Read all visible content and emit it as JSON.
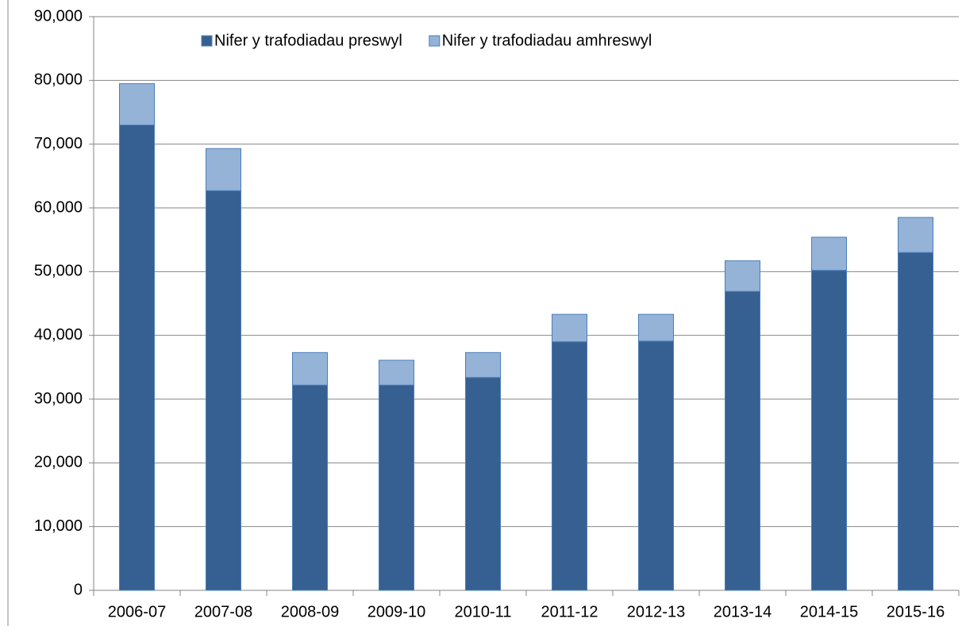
{
  "chart_data": {
    "type": "stacked_bar",
    "categories": [
      "2006-07",
      "2007-08",
      "2008-09",
      "2009-10",
      "2010-11",
      "2011-12",
      "2012-13",
      "2013-14",
      "2014-15",
      "2015-16"
    ],
    "series": [
      {
        "name": "Nifer y trafodiadau preswyl",
        "color": "#376092",
        "values": [
          73000,
          62700,
          32200,
          32200,
          33400,
          39000,
          39100,
          46900,
          50200,
          53000
        ]
      },
      {
        "name": "Nifer y trafodiadau amhreswyl",
        "color": "#95b3d7",
        "values": [
          6500,
          6600,
          5100,
          3900,
          3900,
          4300,
          4200,
          4800,
          5200,
          5500
        ]
      }
    ],
    "ylim": [
      0,
      90000
    ],
    "yticks": [
      0,
      {
        "value": 10000,
        "label": "10,000"
      },
      {
        "value": 20000,
        "label": "20,000"
      },
      {
        "value": 30000,
        "label": "30,000"
      },
      {
        "value": 40000,
        "label": "40,000"
      },
      {
        "value": 50000,
        "label": "50,000"
      },
      {
        "value": 60000,
        "label": "60,000"
      },
      {
        "value": 70000,
        "label": "70,000"
      },
      {
        "value": 80000,
        "label": "80,000"
      },
      {
        "value": 90000,
        "label": "90,000"
      }
    ],
    "grid": true,
    "legend": "top"
  }
}
